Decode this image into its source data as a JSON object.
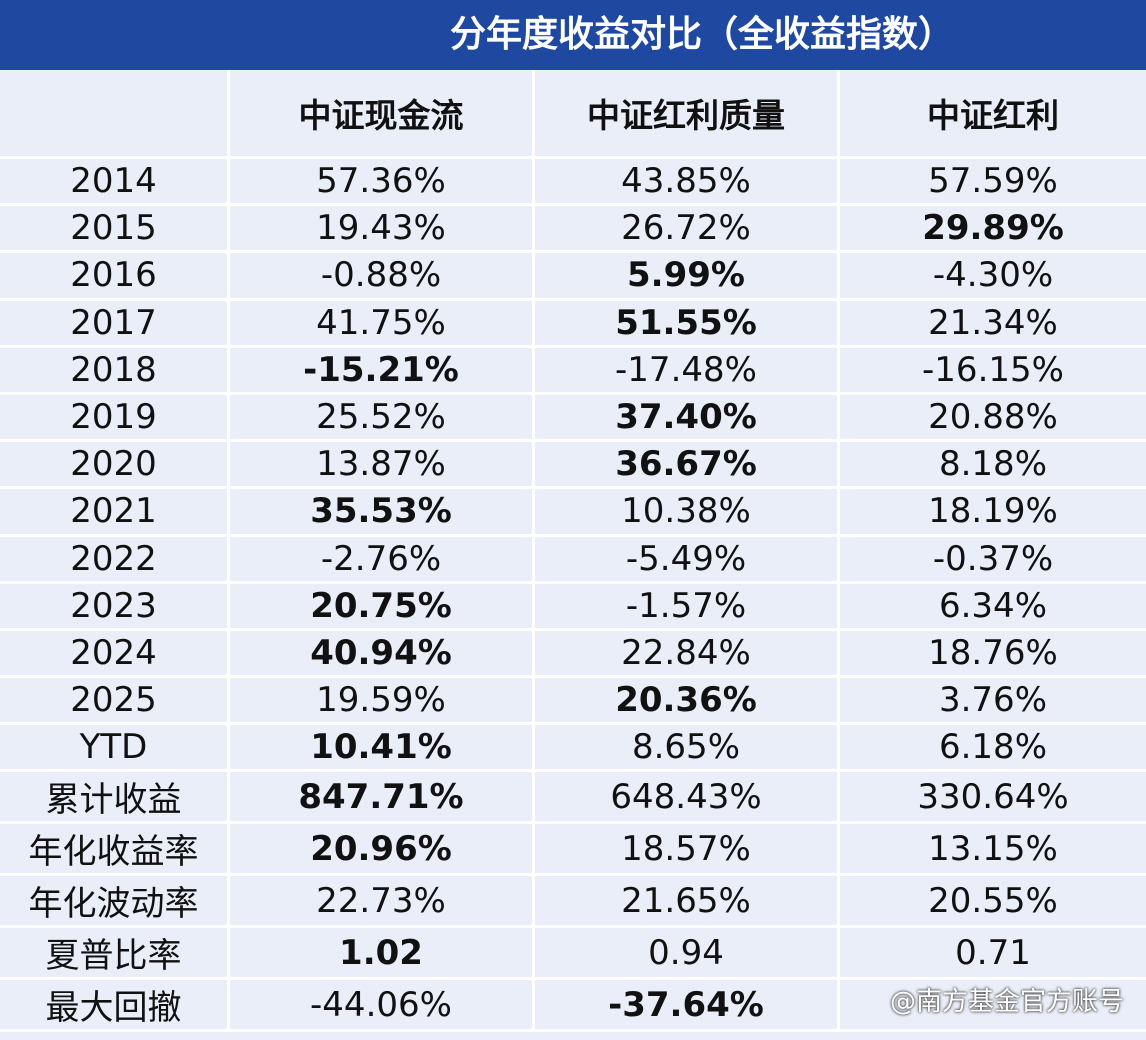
{
  "title": "分年度收益对比（全收益指数）",
  "headers": [
    "",
    "中证现金流",
    "中证红利质量",
    "中证红利"
  ],
  "rows": [
    {
      "label": "2014",
      "values": [
        "57.36%",
        "43.85%",
        "57.59%"
      ],
      "bold": [
        false,
        false,
        false
      ]
    },
    {
      "label": "2015",
      "values": [
        "19.43%",
        "26.72%",
        "29.89%"
      ],
      "bold": [
        false,
        false,
        true
      ]
    },
    {
      "label": "2016",
      "values": [
        "-0.88%",
        "5.99%",
        "-4.30%"
      ],
      "bold": [
        false,
        true,
        false
      ]
    },
    {
      "label": "2017",
      "values": [
        "41.75%",
        "51.55%",
        "21.34%"
      ],
      "bold": [
        false,
        true,
        false
      ]
    },
    {
      "label": "2018",
      "values": [
        "-15.21%",
        "-17.48%",
        "-16.15%"
      ],
      "bold": [
        true,
        false,
        false
      ]
    },
    {
      "label": "2019",
      "values": [
        "25.52%",
        "37.40%",
        "20.88%"
      ],
      "bold": [
        false,
        true,
        false
      ]
    },
    {
      "label": "2020",
      "values": [
        "13.87%",
        "36.67%",
        "8.18%"
      ],
      "bold": [
        false,
        true,
        false
      ]
    },
    {
      "label": "2021",
      "values": [
        "35.53%",
        "10.38%",
        "18.19%"
      ],
      "bold": [
        true,
        false,
        false
      ]
    },
    {
      "label": "2022",
      "values": [
        "-2.76%",
        "-5.49%",
        "-0.37%"
      ],
      "bold": [
        false,
        false,
        false
      ]
    },
    {
      "label": "2023",
      "values": [
        "20.75%",
        "-1.57%",
        "6.34%"
      ],
      "bold": [
        true,
        false,
        false
      ]
    },
    {
      "label": "2024",
      "values": [
        "40.94%",
        "22.84%",
        "18.76%"
      ],
      "bold": [
        true,
        false,
        false
      ]
    },
    {
      "label": "2025",
      "values": [
        "19.59%",
        "20.36%",
        "3.76%"
      ],
      "bold": [
        false,
        true,
        false
      ]
    },
    {
      "label": "YTD",
      "values": [
        "10.41%",
        "8.65%",
        "6.18%"
      ],
      "bold": [
        true,
        false,
        false
      ]
    },
    {
      "label": "累计收益",
      "values": [
        "847.71%",
        "648.43%",
        "330.64%"
      ],
      "bold": [
        true,
        false,
        false
      ]
    },
    {
      "label": "年化收益率",
      "values": [
        "20.96%",
        "18.57%",
        "13.15%"
      ],
      "bold": [
        true,
        false,
        false
      ]
    },
    {
      "label": "年化波动率",
      "values": [
        "22.73%",
        "21.65%",
        "20.55%"
      ],
      "bold": [
        false,
        false,
        false
      ]
    },
    {
      "label": "夏普比率",
      "values": [
        "1.02",
        "0.94",
        "0.71"
      ],
      "bold": [
        true,
        false,
        false
      ]
    },
    {
      "label": "最大回撤",
      "values": [
        "-44.06%",
        "-37.64%",
        ""
      ],
      "bold": [
        false,
        true,
        false
      ]
    }
  ],
  "watermark": "@南方基金官方账号",
  "colors": {
    "banner": "#1f49a1",
    "cell_background": "#e9eef9",
    "grid_lines": "#ffffff",
    "text": "#111111"
  }
}
